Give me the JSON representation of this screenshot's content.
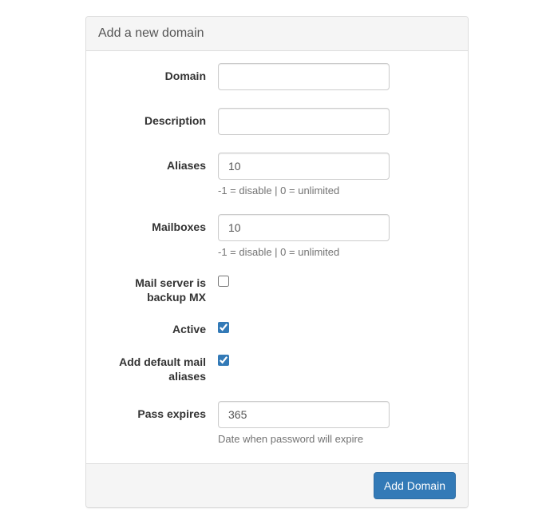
{
  "panel": {
    "title": "Add a new domain"
  },
  "form": {
    "domain": {
      "label": "Domain",
      "value": ""
    },
    "description": {
      "label": "Description",
      "value": ""
    },
    "aliases": {
      "label": "Aliases",
      "value": "10",
      "help": "-1 = disable | 0 = unlimited"
    },
    "mailboxes": {
      "label": "Mailboxes",
      "value": "10",
      "help": "-1 = disable | 0 = unlimited"
    },
    "backup_mx": {
      "label": "Mail server is backup MX",
      "checked": false
    },
    "active": {
      "label": "Active",
      "checked": true
    },
    "default_aliases": {
      "label": "Add default mail aliases",
      "checked": true
    },
    "pass_expires": {
      "label": "Pass expires",
      "value": "365",
      "help": "Date when password will expire"
    }
  },
  "footer": {
    "submit_label": "Add Domain"
  },
  "colors": {
    "primary": "#337ab7",
    "panel_bg": "#f5f5f5",
    "border": "#ddd",
    "help_text": "#737373"
  }
}
